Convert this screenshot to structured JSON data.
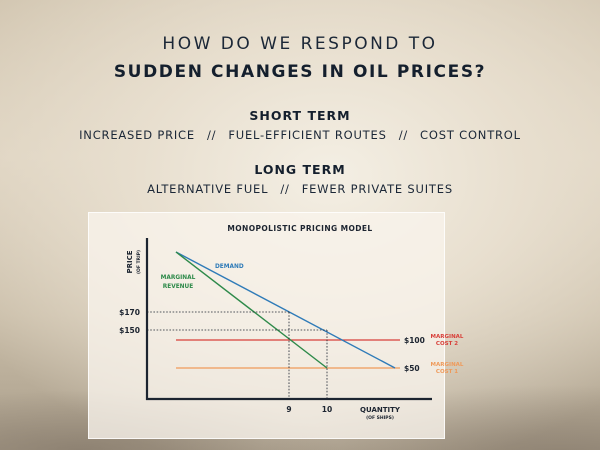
{
  "header": {
    "line1": "HOW DO WE RESPOND TO",
    "line2": "SUDDEN CHANGES IN OIL PRICES?"
  },
  "short_term": {
    "heading": "SHORT TERM",
    "items": [
      "INCREASED PRICE",
      "FUEL-EFFICIENT ROUTES",
      "COST CONTROL"
    ],
    "separator": "//"
  },
  "long_term": {
    "heading": "LONG TERM",
    "items": [
      "ALTERNATIVE FUEL",
      "FEWER PRIVATE SUITES"
    ],
    "separator": "//"
  },
  "chart": {
    "title": "MONOPOLISTIC PRICING MODEL",
    "ylabel": "PRICE",
    "ylabel_unit": "(OF TRIP)",
    "xlabel": "QUANTITY",
    "xlabel_unit": "(OF SHIPS)",
    "demand_label": "DEMAND",
    "mr_label_1": "MARGINAL",
    "mr_label_2": "REVENUE",
    "price_ticks": [
      "$170",
      "$150"
    ],
    "qty_ticks": [
      "9",
      "10"
    ],
    "mc2_value": "$100",
    "mc2_label_1": "MARGINAL",
    "mc2_label_2": "COST 2",
    "mc1_value": "$50",
    "mc1_label_1": "MARGINAL",
    "mc1_label_2": "COST 1"
  },
  "colors": {
    "demand": "#2f7bb8",
    "marginal_revenue": "#2e8a4a",
    "marginal_cost_2": "#d8403a",
    "marginal_cost_1": "#ef9a5a",
    "axis": "#1c2430"
  }
}
